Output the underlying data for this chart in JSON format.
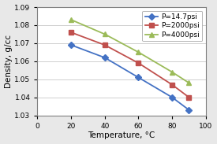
{
  "title": "",
  "xlabel": "Temperature, °C",
  "ylabel": "Density, g/cc",
  "xlim": [
    0,
    100
  ],
  "ylim": [
    1.03,
    1.09
  ],
  "yticks": [
    1.03,
    1.04,
    1.05,
    1.06,
    1.07,
    1.08,
    1.09
  ],
  "xticks": [
    0,
    20,
    40,
    60,
    80,
    100
  ],
  "series": [
    {
      "label": "P=14.7psi",
      "x": [
        20,
        40,
        60,
        80,
        90
      ],
      "y": [
        1.069,
        1.062,
        1.051,
        1.04,
        1.033
      ],
      "color": "#4472C4",
      "marker": "D",
      "markercolor": "#4472C4",
      "linestyle": "-"
    },
    {
      "label": "P=2000psi",
      "x": [
        20,
        40,
        60,
        80,
        90
      ],
      "y": [
        1.076,
        1.069,
        1.059,
        1.047,
        1.04
      ],
      "color": "#C0504D",
      "marker": "s",
      "markercolor": "#C0504D",
      "linestyle": "-"
    },
    {
      "label": "P=4000psi",
      "x": [
        20,
        40,
        60,
        80,
        90
      ],
      "y": [
        1.083,
        1.075,
        1.065,
        1.054,
        1.048
      ],
      "color": "#9BBB59",
      "marker": "^",
      "markercolor": "#9BBB59",
      "linestyle": "-"
    }
  ],
  "legend_fontsize": 6.5,
  "axis_fontsize": 7.5,
  "tick_fontsize": 6.5,
  "figure_facecolor": "#E8E8E8",
  "axes_facecolor": "#FFFFFF",
  "grid_color": "#C8C8C8",
  "spine_color": "#7F7F7F"
}
